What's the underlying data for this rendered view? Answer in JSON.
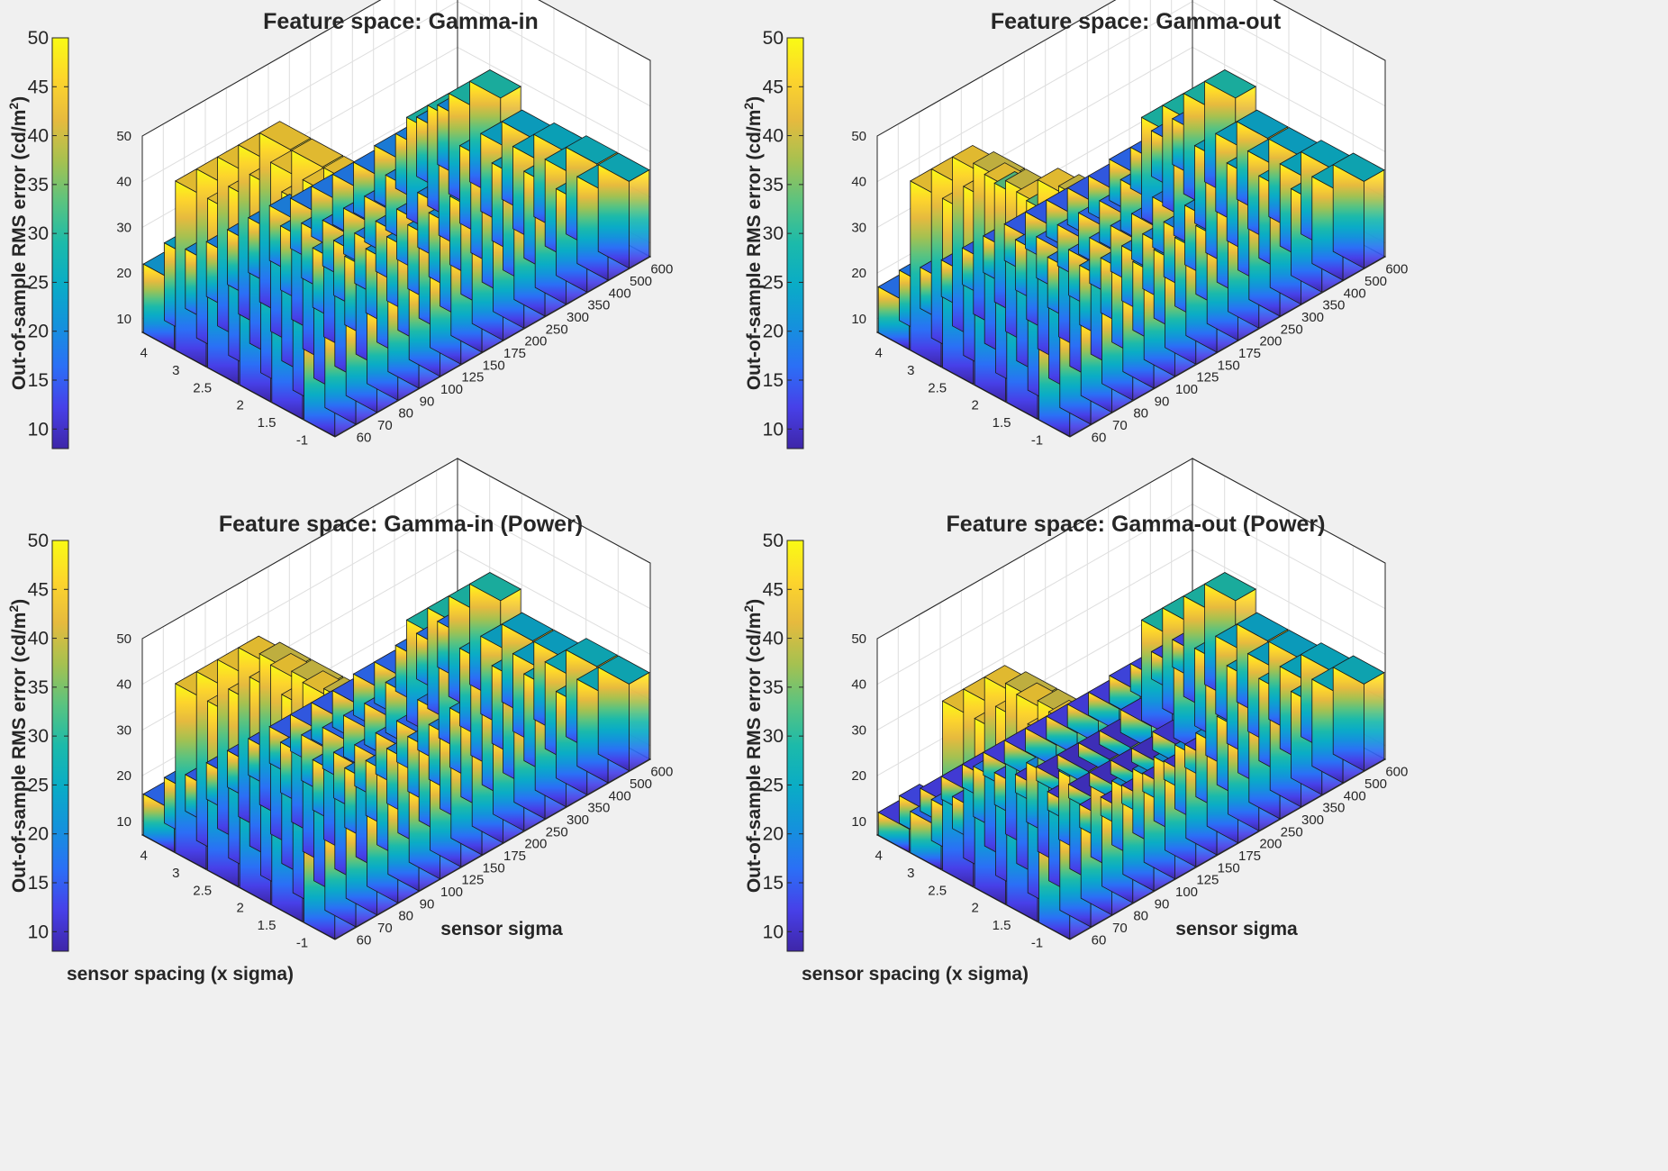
{
  "chart_data": [
    {
      "type": "bar3d",
      "title": "Feature space: Gamma-in",
      "xlabel": "",
      "ylabel": "",
      "colorbar_label": "Out-of-sample RMS error (cd/m",
      "colorbar_label_sup": "2",
      "colorbar_label_end": ")",
      "x_categories": [
        "-1",
        "1.5",
        "2",
        "2.5",
        "3",
        "4"
      ],
      "y_categories": [
        "60",
        "70",
        "80",
        "90",
        "100",
        "125",
        "150",
        "175",
        "200",
        "250",
        "300",
        "350",
        "400",
        "500",
        "600"
      ],
      "z_ticks": [
        "10",
        "20",
        "30",
        "40",
        "50"
      ],
      "colorbar_ticks": [
        "10",
        "15",
        "20",
        "25",
        "30",
        "35",
        "40",
        "45",
        "50"
      ],
      "zlim": [
        7,
        50
      ],
      "colorbar_lim": [
        8,
        50
      ],
      "values": [
        [
          26,
          24,
          23,
          23,
          23,
          23,
          23,
          24,
          24,
          24,
          25,
          25,
          26,
          26,
          26
        ],
        [
          44,
          44,
          44,
          44,
          44,
          25,
          24,
          24,
          24,
          24,
          25,
          26,
          26,
          26,
          26
        ],
        [
          44,
          44,
          44,
          44,
          44,
          22,
          21,
          21,
          21,
          21,
          22,
          24,
          24,
          25,
          25
        ],
        [
          44,
          44,
          44,
          44,
          44,
          20,
          19,
          18,
          18,
          18,
          19,
          24,
          24,
          24,
          24
        ],
        [
          44,
          44,
          44,
          44,
          44,
          21,
          19,
          17,
          17,
          17,
          19,
          29,
          29,
          29,
          29
        ],
        [
          22,
          24,
          20,
          19,
          19,
          19,
          19,
          18,
          18,
          18,
          18,
          19,
          19,
          20,
          20
        ]
      ]
    },
    {
      "type": "bar3d",
      "title": "Feature space: Gamma-out",
      "xlabel": "",
      "ylabel": "",
      "colorbar_label": "Out-of-sample RMS error (cd/m",
      "colorbar_label_sup": "2",
      "colorbar_label_end": ")",
      "x_categories": [
        "-1",
        "1.5",
        "2",
        "2.5",
        "3",
        "4"
      ],
      "y_categories": [
        "60",
        "70",
        "80",
        "90",
        "100",
        "125",
        "150",
        "175",
        "200",
        "250",
        "300",
        "350",
        "400",
        "500",
        "600"
      ],
      "z_ticks": [
        "10",
        "20",
        "30",
        "40",
        "50"
      ],
      "colorbar_ticks": [
        "10",
        "15",
        "20",
        "25",
        "30",
        "35",
        "40",
        "45",
        "50"
      ],
      "zlim": [
        7,
        50
      ],
      "colorbar_lim": [
        8,
        50
      ],
      "values": [
        [
          26,
          24,
          23,
          23,
          23,
          23,
          23,
          24,
          24,
          24,
          25,
          25,
          26,
          26,
          26
        ],
        [
          44,
          44,
          44,
          44,
          40,
          23,
          22,
          22,
          22,
          22,
          23,
          25,
          25,
          25,
          25
        ],
        [
          44,
          44,
          44,
          44,
          40,
          20,
          19,
          19,
          19,
          19,
          20,
          24,
          24,
          24,
          24
        ],
        [
          44,
          44,
          44,
          40,
          33,
          18,
          17,
          17,
          17,
          17,
          18,
          24,
          24,
          24,
          24
        ],
        [
          44,
          44,
          44,
          40,
          33,
          18,
          16,
          16,
          16,
          16,
          18,
          29,
          29,
          29,
          29
        ],
        [
          17,
          18,
          16,
          15,
          15,
          15,
          15,
          15,
          15,
          15,
          15,
          16,
          16,
          17,
          17
        ]
      ]
    },
    {
      "type": "bar3d",
      "title": "Feature space: Gamma-in (Power)",
      "xlabel": "sensor spacing (x sigma)",
      "ylabel": "sensor sigma",
      "colorbar_label": "Out-of-sample RMS error (cd/m",
      "colorbar_label_sup": "2",
      "colorbar_label_end": ")",
      "x_categories": [
        "-1",
        "1.5",
        "2",
        "2.5",
        "3",
        "4"
      ],
      "y_categories": [
        "60",
        "70",
        "80",
        "90",
        "100",
        "125",
        "150",
        "175",
        "200",
        "250",
        "300",
        "350",
        "400",
        "500",
        "600"
      ],
      "z_ticks": [
        "10",
        "20",
        "30",
        "40",
        "50"
      ],
      "colorbar_ticks": [
        "10",
        "15",
        "20",
        "25",
        "30",
        "35",
        "40",
        "45",
        "50"
      ],
      "zlim": [
        7,
        50
      ],
      "colorbar_lim": [
        8,
        50
      ],
      "values": [
        [
          26,
          24,
          23,
          23,
          23,
          23,
          23,
          24,
          24,
          24,
          25,
          25,
          26,
          26,
          26
        ],
        [
          44,
          44,
          44,
          44,
          44,
          24,
          23,
          23,
          23,
          23,
          24,
          26,
          26,
          26,
          26
        ],
        [
          44,
          44,
          44,
          44,
          40,
          20,
          19,
          19,
          19,
          19,
          20,
          24,
          24,
          24,
          24
        ],
        [
          44,
          44,
          44,
          44,
          40,
          18,
          17,
          16,
          16,
          16,
          18,
          24,
          24,
          24,
          24
        ],
        [
          44,
          44,
          44,
          44,
          40,
          18,
          17,
          16,
          16,
          16,
          18,
          29,
          29,
          29,
          29
        ],
        [
          16,
          17,
          15,
          15,
          15,
          15,
          15,
          15,
          15,
          15,
          16,
          16,
          17,
          17,
          17
        ]
      ]
    },
    {
      "type": "bar3d",
      "title": "Feature space: Gamma-out (Power)",
      "xlabel": "sensor spacing (x sigma)",
      "ylabel": "sensor sigma",
      "colorbar_label": "Out-of-sample RMS error (cd/m",
      "colorbar_label_sup": "2",
      "colorbar_label_end": ")",
      "x_categories": [
        "-1",
        "1.5",
        "2",
        "2.5",
        "3",
        "4"
      ],
      "y_categories": [
        "60",
        "70",
        "80",
        "90",
        "100",
        "125",
        "150",
        "175",
        "200",
        "250",
        "300",
        "350",
        "400",
        "500",
        "600"
      ],
      "z_ticks": [
        "10",
        "20",
        "30",
        "40",
        "50"
      ],
      "colorbar_ticks": [
        "10",
        "15",
        "20",
        "25",
        "30",
        "35",
        "40",
        "45",
        "50"
      ],
      "zlim": [
        7,
        50
      ],
      "colorbar_lim": [
        8,
        50
      ],
      "values": [
        [
          26,
          24,
          23,
          23,
          23,
          23,
          23,
          24,
          24,
          24,
          25,
          25,
          26,
          26,
          26
        ],
        [
          44,
          44,
          44,
          40,
          24,
          21,
          21,
          21,
          21,
          21,
          22,
          25,
          25,
          25,
          25
        ],
        [
          44,
          44,
          44,
          40,
          22,
          12,
          11,
          11,
          11,
          11,
          12,
          24,
          24,
          24,
          24
        ],
        [
          44,
          44,
          44,
          40,
          20,
          11,
          10,
          10,
          10,
          10,
          11,
          24,
          24,
          24,
          24
        ],
        [
          16,
          16,
          14,
          18,
          14,
          11,
          10,
          10,
          10,
          10,
          12,
          29,
          29,
          29,
          29
        ],
        [
          12,
          13,
          12,
          12,
          12,
          12,
          12,
          12,
          12,
          12,
          12,
          13,
          13,
          13,
          13
        ]
      ]
    }
  ]
}
